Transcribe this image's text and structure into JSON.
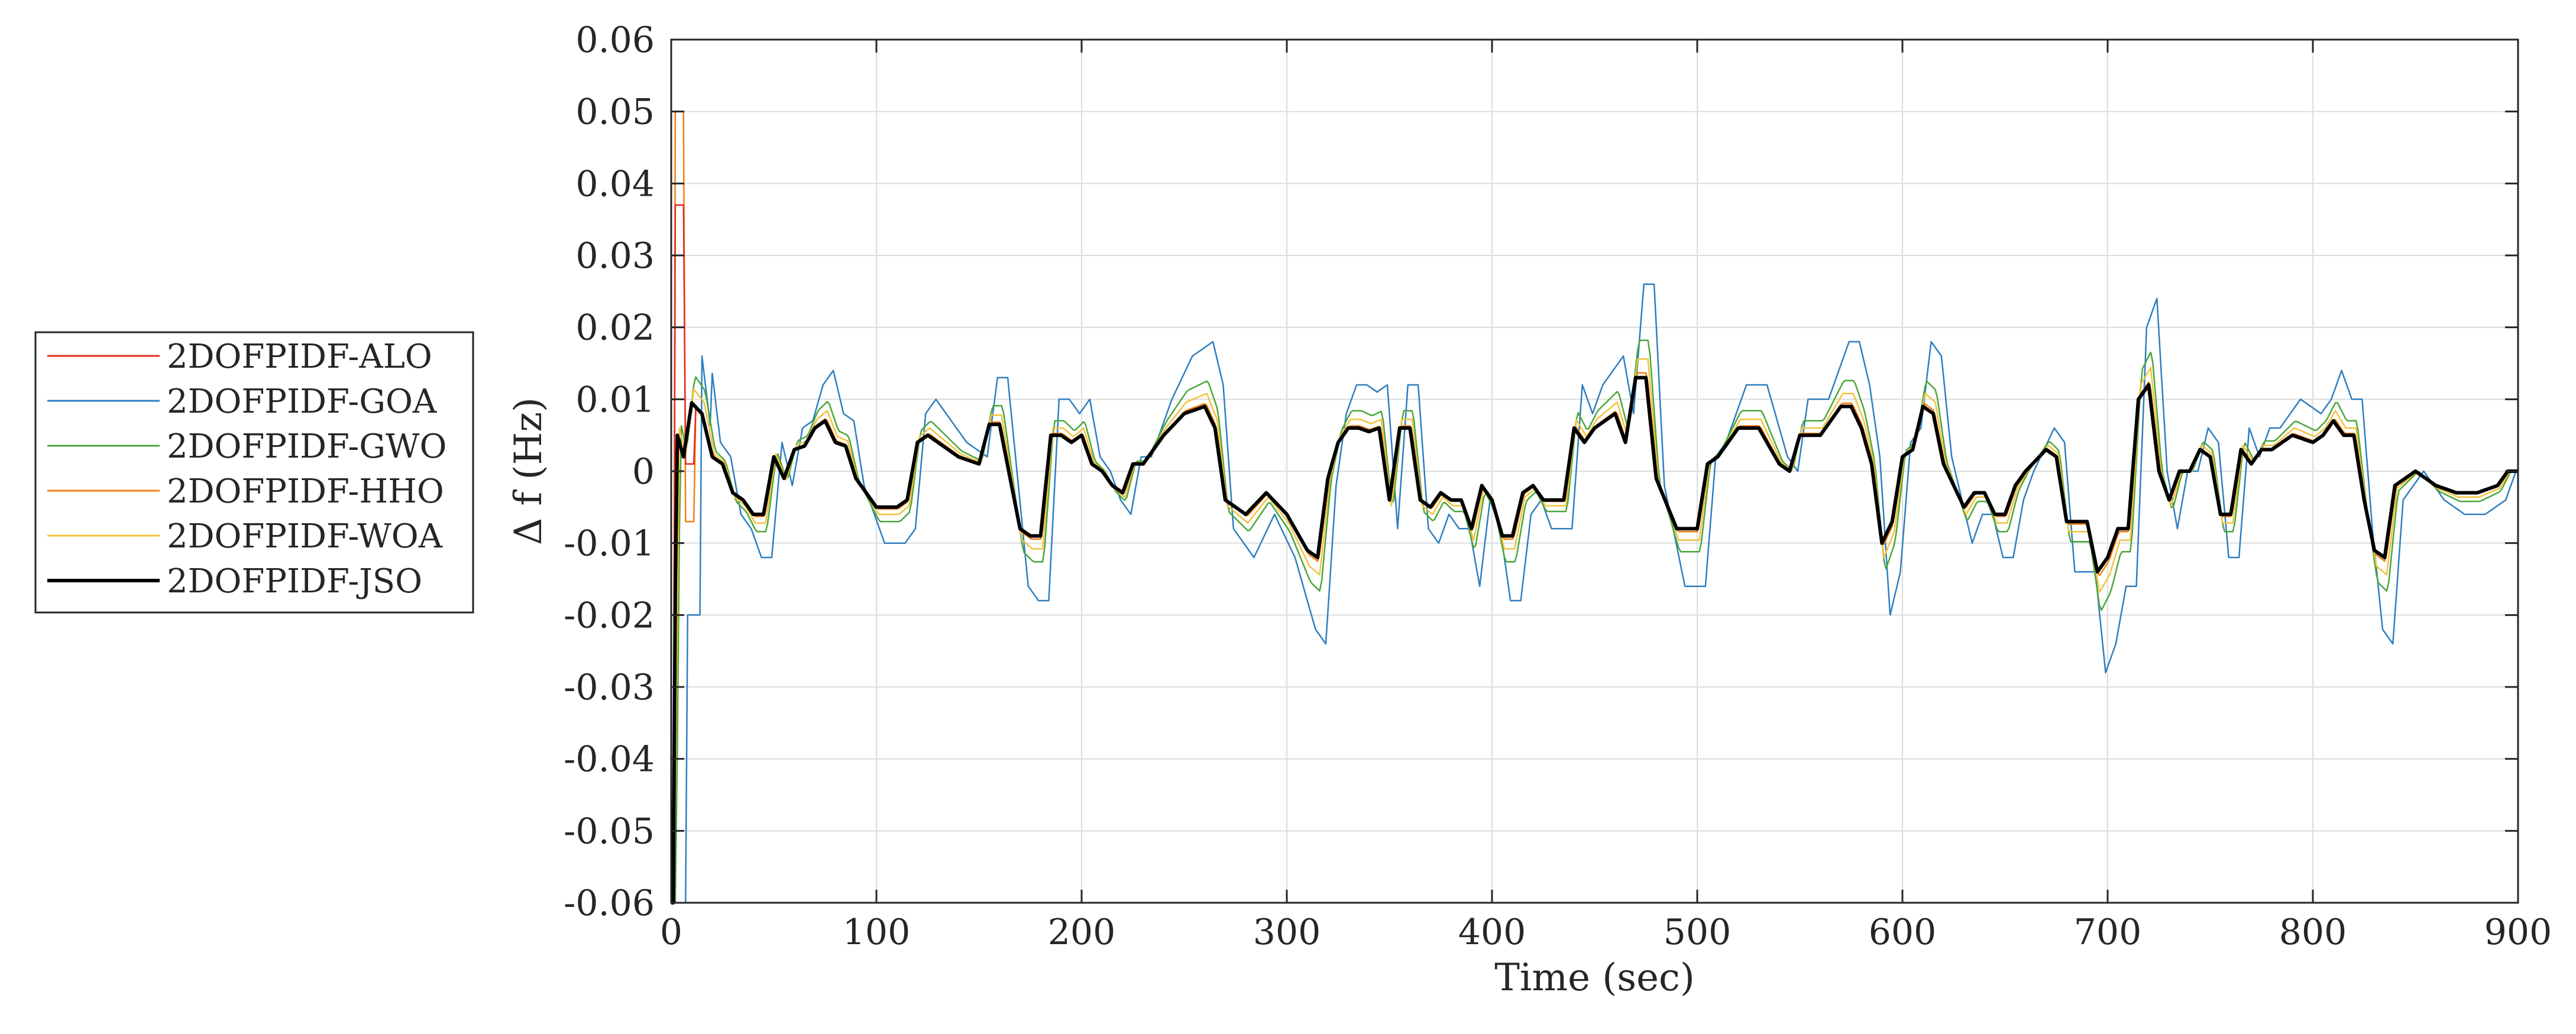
{
  "chart_data": {
    "type": "line",
    "title": "",
    "xlabel": "Time (sec)",
    "ylabel": "Δ f (Hz)",
    "xlim": [
      0,
      900
    ],
    "ylim": [
      -0.06,
      0.06
    ],
    "xticks": [
      0,
      100,
      200,
      300,
      400,
      500,
      600,
      700,
      800,
      900
    ],
    "yticks": [
      -0.06,
      -0.05,
      -0.04,
      -0.03,
      -0.02,
      -0.01,
      0,
      0.01,
      0.02,
      0.03,
      0.04,
      0.05,
      0.06
    ],
    "xtick_labels": [
      "0",
      "100",
      "200",
      "300",
      "400",
      "500",
      "600",
      "700",
      "800",
      "900"
    ],
    "ytick_labels": [
      "-0.06",
      "-0.05",
      "-0.04",
      "-0.03",
      "-0.02",
      "-0.01",
      "0",
      "0.01",
      "0.02",
      "0.03",
      "0.04",
      "0.05",
      "0.06"
    ],
    "grid": true,
    "legend_position": "left-outside",
    "colors": {
      "2DOFPIDF-ALO": "#e8291c",
      "2DOFPIDF-GOA": "#2e7ebf",
      "2DOFPIDF-GWO": "#4aa63a",
      "2DOFPIDF-HHO": "#f07f12",
      "2DOFPIDF-WOA": "#f2c23a",
      "2DOFPIDF-JSO": "#000000"
    },
    "series": [
      {
        "name": "2DOFPIDF-ALO"
      },
      {
        "name": "2DOFPIDF-GOA"
      },
      {
        "name": "2DOFPIDF-GWO"
      },
      {
        "name": "2DOFPIDF-HHO"
      },
      {
        "name": "2DOFPIDF-WOA"
      },
      {
        "name": "2DOFPIDF-JSO"
      }
    ],
    "base_signal": {
      "x": [
        0,
        3,
        6,
        10,
        15,
        20,
        25,
        30,
        35,
        40,
        45,
        50,
        55,
        60,
        65,
        70,
        75,
        80,
        85,
        90,
        95,
        100,
        105,
        110,
        115,
        120,
        125,
        130,
        140,
        150,
        155,
        160,
        170,
        175,
        180,
        185,
        190,
        195,
        200,
        205,
        210,
        215,
        220,
        225,
        230,
        240,
        250,
        260,
        265,
        270,
        280,
        290,
        300,
        310,
        315,
        320,
        325,
        330,
        335,
        340,
        345,
        350,
        355,
        360,
        365,
        370,
        375,
        380,
        385,
        390,
        395,
        400,
        405,
        410,
        415,
        420,
        425,
        430,
        435,
        440,
        445,
        450,
        455,
        460,
        465,
        470,
        475,
        480,
        490,
        500,
        505,
        510,
        520,
        530,
        540,
        545,
        550,
        560,
        570,
        575,
        580,
        585,
        590,
        595,
        600,
        605,
        610,
        615,
        620,
        625,
        630,
        635,
        640,
        645,
        650,
        655,
        660,
        670,
        675,
        680,
        685,
        690,
        695,
        700,
        705,
        710,
        715,
        720,
        725,
        730,
        735,
        740,
        745,
        750,
        755,
        760,
        765,
        770,
        775,
        780,
        790,
        800,
        805,
        810,
        815,
        820,
        825,
        830,
        835,
        840,
        850,
        860,
        870,
        880,
        890,
        895,
        900
      ],
      "y": [
        -0.06,
        0.005,
        0.002,
        0.0095,
        0.008,
        0.002,
        0.001,
        -0.003,
        -0.004,
        -0.006,
        -0.006,
        0.002,
        -0.001,
        0.003,
        0.0035,
        0.006,
        0.007,
        0.004,
        0.0035,
        -0.001,
        -0.003,
        -0.005,
        -0.005,
        -0.005,
        -0.004,
        0.004,
        0.005,
        0.004,
        0.002,
        0.001,
        0.0065,
        0.0065,
        -0.008,
        -0.009,
        -0.009,
        0.005,
        0.005,
        0.004,
        0.005,
        0.001,
        0,
        -0.002,
        -0.003,
        0.001,
        0.001,
        0.005,
        0.008,
        0.009,
        0.006,
        -0.004,
        -0.006,
        -0.003,
        -0.006,
        -0.011,
        -0.012,
        -0.001,
        0.004,
        0.006,
        0.006,
        0.0055,
        0.006,
        -0.004,
        0.006,
        0.006,
        -0.004,
        -0.005,
        -0.003,
        -0.004,
        -0.004,
        -0.008,
        -0.002,
        -0.004,
        -0.009,
        -0.009,
        -0.003,
        -0.002,
        -0.004,
        -0.004,
        -0.004,
        0.006,
        0.004,
        0.006,
        0.007,
        0.008,
        0.004,
        0.013,
        0.013,
        -0.001,
        -0.008,
        -0.008,
        0.001,
        0.002,
        0.006,
        0.006,
        0.001,
        0,
        0.005,
        0.005,
        0.009,
        0.009,
        0.006,
        0.001,
        -0.01,
        -0.007,
        0.002,
        0.003,
        0.009,
        0.008,
        0.001,
        -0.002,
        -0.005,
        -0.003,
        -0.003,
        -0.006,
        -0.006,
        -0.002,
        0,
        0.003,
        0.002,
        -0.007,
        -0.007,
        -0.007,
        -0.014,
        -0.012,
        -0.008,
        -0.008,
        0.01,
        0.012,
        0,
        -0.004,
        0,
        0,
        0.003,
        0.002,
        -0.006,
        -0.006,
        0.003,
        0.001,
        0.003,
        0.003,
        0.005,
        0.004,
        0.005,
        0.007,
        0.005,
        0.005,
        -0.004,
        -0.011,
        -0.012,
        -0.002,
        0,
        -0.002,
        -0.003,
        -0.003,
        -0.002,
        0,
        0
      ]
    }
  },
  "legend": {
    "items": [
      {
        "label": "2DOFPIDF-ALO"
      },
      {
        "label": "2DOFPIDF-GOA"
      },
      {
        "label": "2DOFPIDF-GWO"
      },
      {
        "label": "2DOFPIDF-HHO"
      },
      {
        "label": "2DOFPIDF-WOA"
      },
      {
        "label": "2DOFPIDF-JSO"
      }
    ]
  }
}
